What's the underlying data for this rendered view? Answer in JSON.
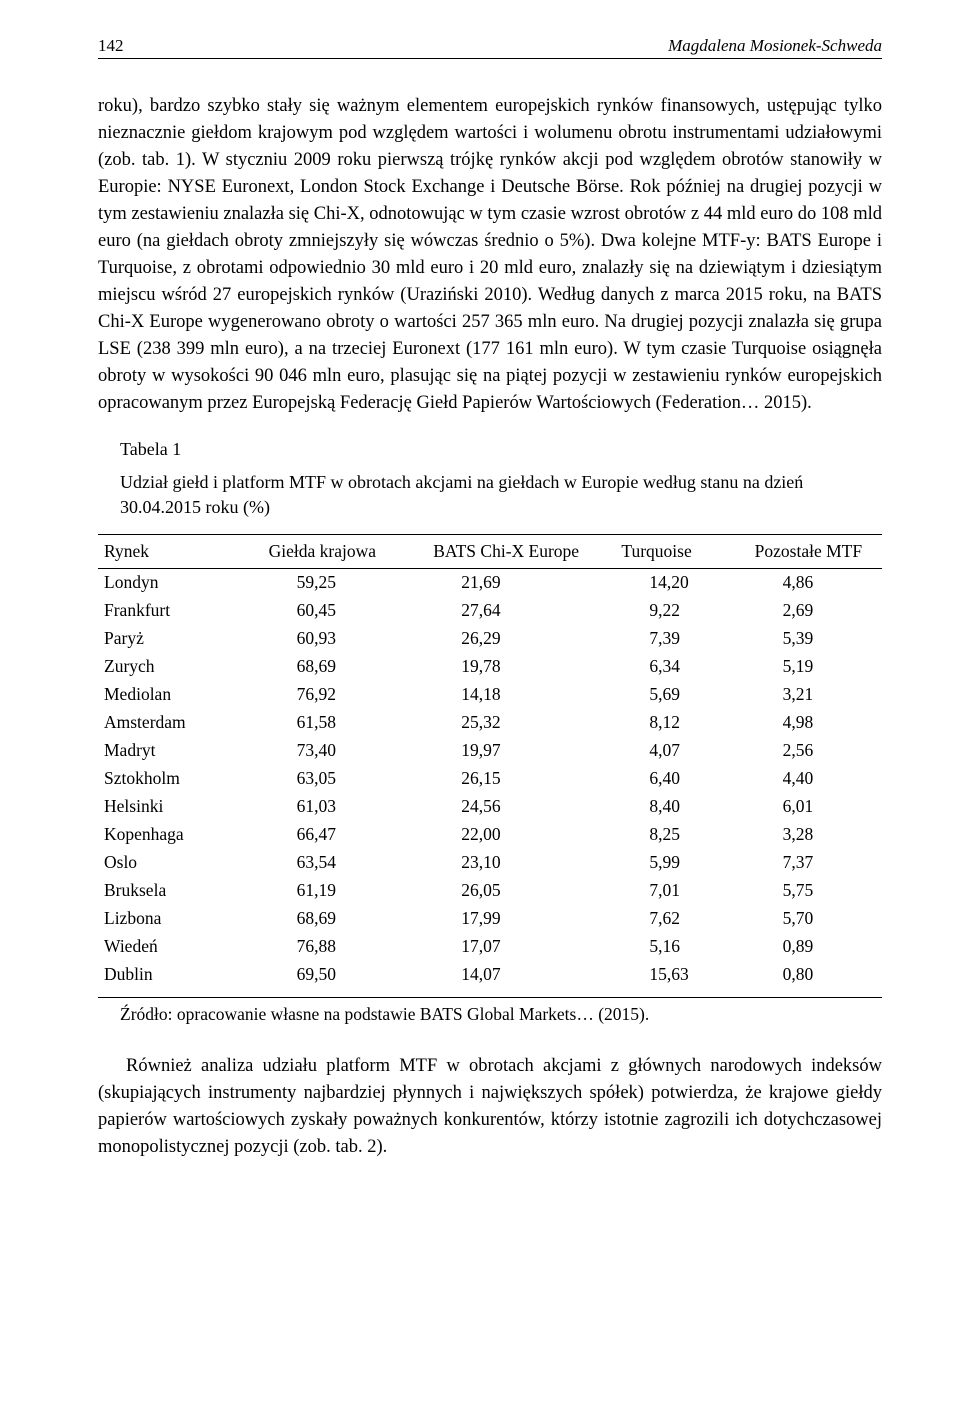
{
  "header": {
    "page_number": "142",
    "author": "Magdalena Mosionek-Schweda"
  },
  "paragraphs": {
    "main": "roku), bardzo szybko stały się ważnym elementem europejskich rynków finansowych, ustępując tylko nieznacznie giełdom krajowym pod względem wartości i wolumenu obrotu instrumentami udziałowymi (zob. tab. 1). W styczniu 2009 roku pierwszą trójkę rynków akcji pod względem obrotów stanowiły w Europie: NYSE Euronext, London Stock Exchange i Deutsche Börse. Rok później na drugiej pozycji w tym zestawieniu znalazła się Chi-X, odnotowując w tym czasie wzrost obrotów z 44 mld euro do 108 mld euro (na giełdach obroty zmniejszyły się wówczas średnio o 5%). Dwa kolejne MTF-y: BATS Europe i Turquoise, z obrotami odpowiednio 30 mld euro i 20 mld euro, znalazły się na dziewiątym i dziesiątym miejscu wśród 27 europejskich rynków (Uraziński 2010). Według danych z marca 2015 roku, na BATS Chi-X Europe wygenerowano obroty o wartości 257 365 mln euro. Na drugiej pozycji znalazła się grupa LSE (238 399 mln euro), a na trzeciej Euronext (177 161 mln euro). W tym czasie Turquoise osiągnęła obroty w wysokości 90 046 mln euro, plasując się na piątej pozycji w zestawieniu rynków europejskich opracowanym przez Europejską Federację Giełd Papierów Wartościowych (Federation… 2015).",
    "closing": "Również analiza udziału platform MTF w obrotach akcjami z głównych narodowych indeksów (skupiających instrumenty najbardziej płynnych i największych spółek) potwierdza, że krajowe giełdy papierów wartościowych zyskały poważnych konkurentów, którzy istotnie zagrozili ich dotychczasowej monopolistycznej pozycji (zob. tab. 2)."
  },
  "table": {
    "label": "Tabela 1",
    "caption": "Udział giełd i platform MTF w obrotach akcjami na giełdach w Europie według stanu na dzień 30.04.2015 roku (%)",
    "columns": [
      "Rynek",
      "Giełda krajowa",
      "BATS Chi-X Europe",
      "Turquoise",
      "Pozostałe MTF"
    ],
    "rows": [
      [
        "Londyn",
        "59,25",
        "21,69",
        "14,20",
        "4,86"
      ],
      [
        "Frankfurt",
        "60,45",
        "27,64",
        "9,22",
        "2,69"
      ],
      [
        "Paryż",
        "60,93",
        "26,29",
        "7,39",
        "5,39"
      ],
      [
        "Zurych",
        "68,69",
        "19,78",
        "6,34",
        "5,19"
      ],
      [
        "Mediolan",
        "76,92",
        "14,18",
        "5,69",
        "3,21"
      ],
      [
        "Amsterdam",
        "61,58",
        "25,32",
        "8,12",
        "4,98"
      ],
      [
        "Madryt",
        "73,40",
        "19,97",
        "4,07",
        "2,56"
      ],
      [
        "Sztokholm",
        "63,05",
        "26,15",
        "6,40",
        "4,40"
      ],
      [
        "Helsinki",
        "61,03",
        "24,56",
        "8,40",
        "6,01"
      ],
      [
        "Kopenhaga",
        "66,47",
        "22,00",
        "8,25",
        "3,28"
      ],
      [
        "Oslo",
        "63,54",
        "23,10",
        "5,99",
        "7,37"
      ],
      [
        "Bruksela",
        "61,19",
        "26,05",
        "7,01",
        "5,75"
      ],
      [
        "Lizbona",
        "68,69",
        "17,99",
        "7,62",
        "5,70"
      ],
      [
        "Wiedeń",
        "76,88",
        "17,07",
        "5,16",
        "0,89"
      ],
      [
        "Dublin",
        "69,50",
        "14,07",
        "15,63",
        "0,80"
      ]
    ],
    "source": "Źródło: opracowanie własne na podstawie BATS Global Markets… (2015)."
  },
  "colors": {
    "text": "#000000",
    "background": "#ffffff",
    "rule": "#000000"
  },
  "typography": {
    "body_font": "Times New Roman",
    "body_size_pt": 11,
    "line_height": 1.46
  }
}
